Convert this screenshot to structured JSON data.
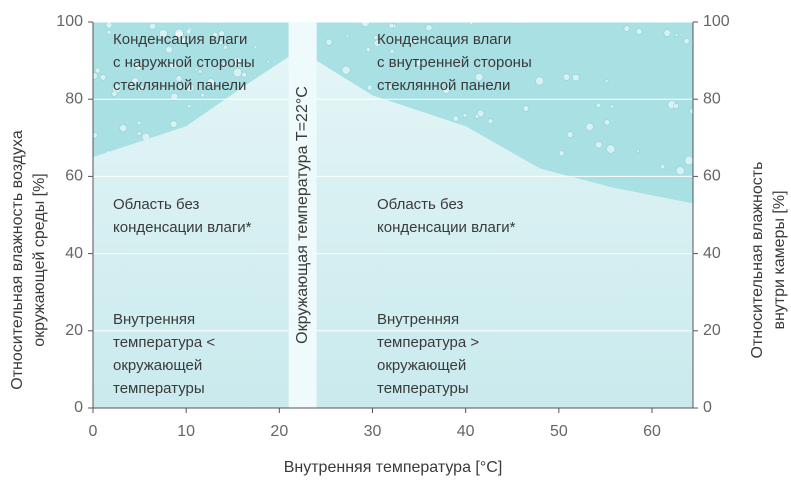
{
  "chart_data": {
    "type": "area",
    "x_label": "Внутренняя температура [°C]",
    "y_label": [
      "Относительная влажность воздуха",
      "окружающей среды [%]"
    ],
    "y2_label": [
      "Относительная влажность",
      "внутри камеры [%]"
    ],
    "xlim": [
      0,
      64.4
    ],
    "xticks": [
      0,
      10,
      20,
      30,
      40,
      50,
      60
    ],
    "ylim": [
      0,
      100
    ],
    "yticks": [
      0,
      20,
      40,
      60,
      80,
      100
    ],
    "y2lim": [
      0,
      100
    ],
    "y2ticks": [
      0,
      20,
      40,
      60,
      80,
      100
    ],
    "grid": true,
    "series": [
      {
        "color": "#a9e0e4",
        "x": [
          0,
          10,
          16,
          21
        ],
        "values": [
          65,
          73,
          83,
          91
        ]
      },
      {
        "color": "#a9e0e4",
        "x": [
          24,
          30,
          40,
          48,
          56,
          64.4
        ],
        "values": [
          90,
          81,
          73,
          62,
          57,
          53
        ],
        "axis": "y2"
      }
    ],
    "band": {
      "x": [
        21,
        24
      ],
      "label": "Окружающая температура T=22°C"
    },
    "annotations": [
      {
        "lines": [
          "Конденсация влаги",
          "с наружной стороны",
          "стеклянной панели"
        ]
      },
      {
        "lines": [
          "Конденсация влаги",
          "с внутренней стороны",
          "стеклянной панели"
        ]
      },
      {
        "lines": [
          "Область без",
          "конденсации влаги*"
        ]
      },
      {
        "lines": [
          "Область без",
          "конденсации влаги*"
        ]
      },
      {
        "lines": [
          "Внутренняя",
          "температура <",
          "окружающей",
          "температуры"
        ]
      },
      {
        "lines": [
          "Внутренняя",
          "температура >",
          "окружающей",
          "температуры"
        ]
      }
    ]
  }
}
